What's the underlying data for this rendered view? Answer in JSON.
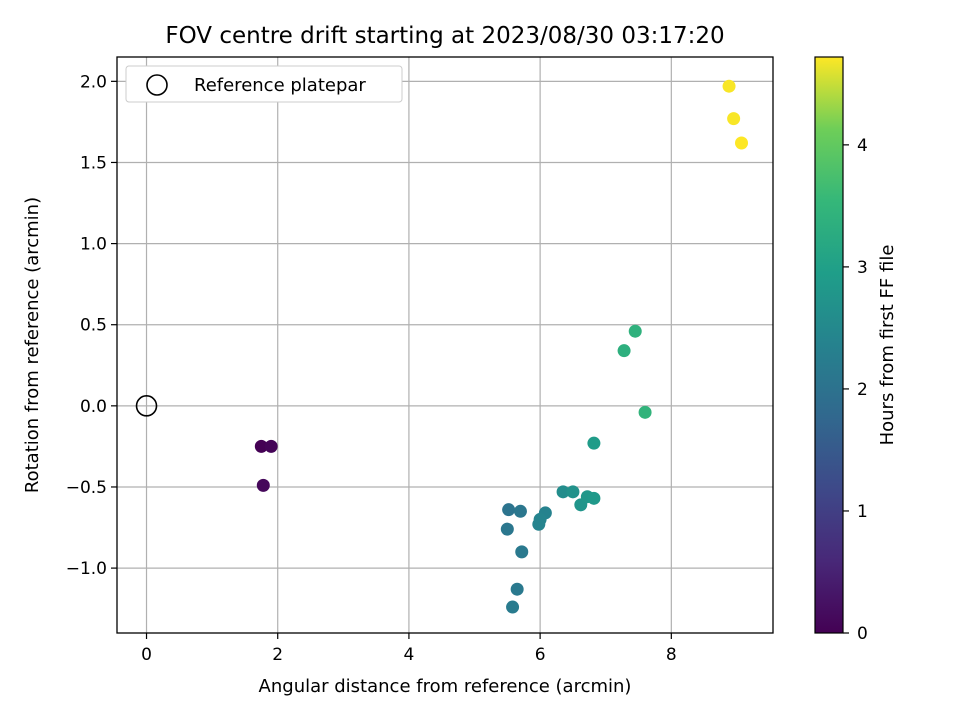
{
  "chart_data": {
    "type": "scatter",
    "title": "FOV centre drift starting at 2023/08/30 03:17:20",
    "xlabel": "Angular distance from reference (arcmin)",
    "ylabel": "Rotation from reference (arcmin)",
    "xlim": [
      -0.45,
      9.55
    ],
    "ylim": [
      -1.4,
      2.15
    ],
    "xticks": [
      0,
      2,
      4,
      6,
      8
    ],
    "xtick_labels": [
      "0",
      "2",
      "4",
      "6",
      "8"
    ],
    "yticks": [
      -1.0,
      -0.5,
      0.0,
      0.5,
      1.0,
      1.5,
      2.0
    ],
    "ytick_labels": [
      "−1.0",
      "−0.5",
      "0.0",
      "0.5",
      "1.0",
      "1.5",
      "2.0"
    ],
    "grid": true,
    "legend": {
      "placement": "top-left",
      "entries": [
        "Reference platepar"
      ]
    },
    "reference_point": {
      "x": 0.0,
      "y": 0.0
    },
    "colormap": "viridis",
    "colorbar": {
      "label": "Hours from first FF file",
      "range": [
        0,
        4.72
      ],
      "ticks": [
        0,
        1,
        2,
        3,
        4
      ],
      "tick_labels": [
        "0",
        "1",
        "2",
        "3",
        "4"
      ]
    },
    "points": [
      {
        "x": 1.75,
        "y": -0.25,
        "hours": 0.0
      },
      {
        "x": 1.9,
        "y": -0.25,
        "hours": 0.05
      },
      {
        "x": 1.78,
        "y": -0.49,
        "hours": 0.1
      },
      {
        "x": 5.52,
        "y": -0.64,
        "hours": 2.05
      },
      {
        "x": 5.7,
        "y": -0.65,
        "hours": 2.1
      },
      {
        "x": 5.5,
        "y": -0.76,
        "hours": 2.1
      },
      {
        "x": 5.72,
        "y": -0.9,
        "hours": 2.15
      },
      {
        "x": 5.65,
        "y": -1.13,
        "hours": 2.15
      },
      {
        "x": 5.58,
        "y": -1.24,
        "hours": 2.2
      },
      {
        "x": 6.08,
        "y": -0.66,
        "hours": 2.35
      },
      {
        "x": 6.0,
        "y": -0.7,
        "hours": 2.4
      },
      {
        "x": 5.98,
        "y": -0.73,
        "hours": 2.4
      },
      {
        "x": 6.35,
        "y": -0.53,
        "hours": 2.6
      },
      {
        "x": 6.5,
        "y": -0.53,
        "hours": 2.7
      },
      {
        "x": 6.62,
        "y": -0.61,
        "hours": 2.75
      },
      {
        "x": 6.72,
        "y": -0.56,
        "hours": 2.8
      },
      {
        "x": 6.82,
        "y": -0.57,
        "hours": 2.85
      },
      {
        "x": 6.82,
        "y": -0.23,
        "hours": 2.9
      },
      {
        "x": 7.28,
        "y": 0.34,
        "hours": 3.35
      },
      {
        "x": 7.45,
        "y": 0.46,
        "hours": 3.4
      },
      {
        "x": 7.6,
        "y": -0.04,
        "hours": 3.45
      },
      {
        "x": 8.88,
        "y": 1.97,
        "hours": 4.7
      },
      {
        "x": 8.95,
        "y": 1.77,
        "hours": 4.7
      },
      {
        "x": 9.07,
        "y": 1.62,
        "hours": 4.72
      }
    ]
  }
}
